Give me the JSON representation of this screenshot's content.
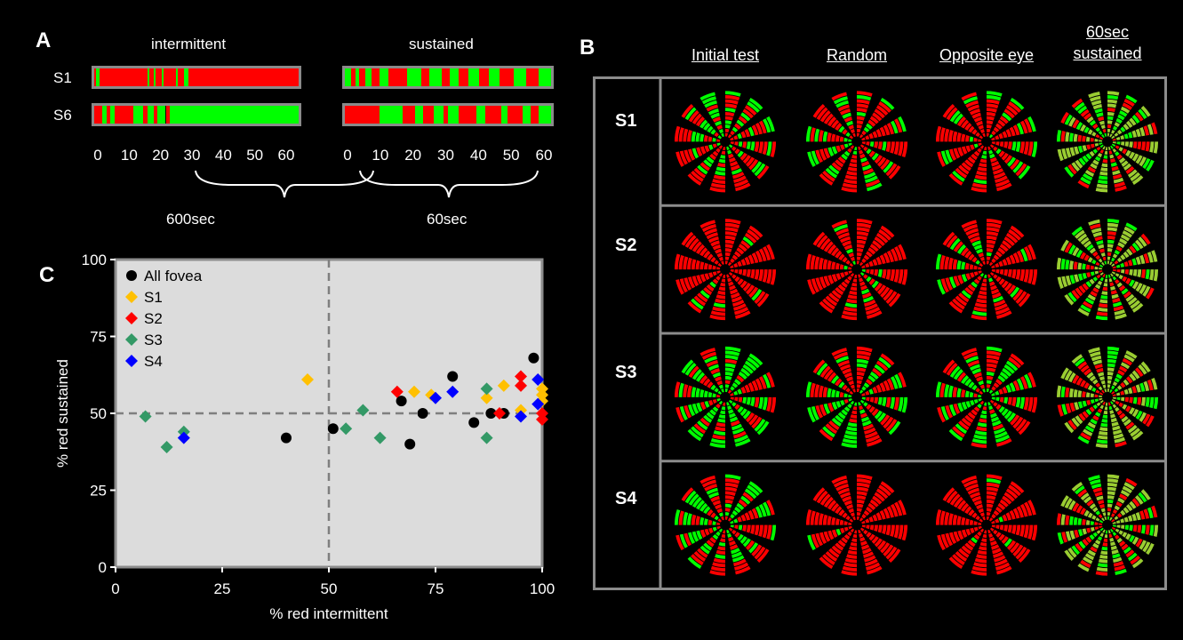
{
  "panel_a": {
    "letter": "A",
    "intermittent_label": "intermittent",
    "sustained_label": "sustained",
    "rows": [
      "S1",
      "S6"
    ],
    "ticks": [
      "0",
      "10",
      "20",
      "30",
      "40",
      "50",
      "60"
    ],
    "duration_intermittent": "600sec",
    "duration_sustained": "60sec",
    "colors": {
      "red": "#ff0000",
      "green": "#00ff00"
    },
    "bars": {
      "S1_intermittent": [
        [
          0,
          0.01,
          "r"
        ],
        [
          0.01,
          0.025,
          "g"
        ],
        [
          0.025,
          0.26,
          "r"
        ],
        [
          0.26,
          0.27,
          "g"
        ],
        [
          0.27,
          0.29,
          "r"
        ],
        [
          0.29,
          0.3,
          "g"
        ],
        [
          0.3,
          0.33,
          "r"
        ],
        [
          0.33,
          0.34,
          "g"
        ],
        [
          0.34,
          0.4,
          "r"
        ],
        [
          0.4,
          0.41,
          "g"
        ],
        [
          0.41,
          0.44,
          "r"
        ],
        [
          0.44,
          0.46,
          "g"
        ],
        [
          0.46,
          1,
          "r"
        ]
      ],
      "S6_intermittent": [
        [
          0,
          0.04,
          "r"
        ],
        [
          0.04,
          0.06,
          "g"
        ],
        [
          0.06,
          0.08,
          "r"
        ],
        [
          0.08,
          0.1,
          "g"
        ],
        [
          0.1,
          0.19,
          "r"
        ],
        [
          0.19,
          0.24,
          "g"
        ],
        [
          0.24,
          0.26,
          "r"
        ],
        [
          0.26,
          0.29,
          "g"
        ],
        [
          0.29,
          0.31,
          "r"
        ],
        [
          0.31,
          0.35,
          "g"
        ],
        [
          0.35,
          0.37,
          "r"
        ],
        [
          0.37,
          1,
          "g"
        ]
      ],
      "S1_sustained": [
        [
          0,
          0.03,
          "g"
        ],
        [
          0.03,
          0.05,
          "r"
        ],
        [
          0.05,
          0.07,
          "g"
        ],
        [
          0.07,
          0.1,
          "r"
        ],
        [
          0.1,
          0.13,
          "g"
        ],
        [
          0.13,
          0.17,
          "r"
        ],
        [
          0.17,
          0.21,
          "g"
        ],
        [
          0.21,
          0.3,
          "r"
        ],
        [
          0.3,
          0.37,
          "g"
        ],
        [
          0.37,
          0.41,
          "r"
        ],
        [
          0.41,
          0.47,
          "g"
        ],
        [
          0.47,
          0.51,
          "r"
        ],
        [
          0.51,
          0.55,
          "g"
        ],
        [
          0.55,
          0.6,
          "r"
        ],
        [
          0.6,
          0.65,
          "g"
        ],
        [
          0.65,
          0.7,
          "r"
        ],
        [
          0.7,
          0.75,
          "g"
        ],
        [
          0.75,
          0.82,
          "r"
        ],
        [
          0.82,
          0.88,
          "g"
        ],
        [
          0.88,
          0.94,
          "r"
        ],
        [
          0.94,
          1,
          "g"
        ]
      ],
      "S6_sustained": [
        [
          0,
          0.17,
          "r"
        ],
        [
          0.17,
          0.28,
          "g"
        ],
        [
          0.28,
          0.34,
          "r"
        ],
        [
          0.34,
          0.38,
          "g"
        ],
        [
          0.38,
          0.43,
          "r"
        ],
        [
          0.43,
          0.48,
          "g"
        ],
        [
          0.48,
          0.5,
          "r"
        ],
        [
          0.5,
          0.55,
          "g"
        ],
        [
          0.55,
          0.64,
          "r"
        ],
        [
          0.64,
          0.68,
          "g"
        ],
        [
          0.68,
          0.76,
          "r"
        ],
        [
          0.76,
          0.79,
          "g"
        ],
        [
          0.79,
          0.86,
          "r"
        ],
        [
          0.86,
          0.9,
          "g"
        ],
        [
          0.9,
          0.94,
          "r"
        ],
        [
          0.94,
          1,
          "g"
        ]
      ]
    }
  },
  "panel_b": {
    "letter": "B",
    "columns": [
      "Initial test",
      "Random",
      "Opposite eye",
      "60sec\nsustained"
    ],
    "rows": [
      "S1",
      "S2",
      "S3",
      "S4"
    ],
    "green_fraction": [
      [
        0.35,
        0.3,
        0.2,
        0.5
      ],
      [
        0.05,
        0.05,
        0.2,
        0.45
      ],
      [
        0.6,
        0.5,
        0.55,
        0.45
      ],
      [
        0.4,
        0.05,
        0.05,
        0.45
      ]
    ]
  },
  "panel_c": {
    "letter": "C"
  },
  "chart_data": {
    "type": "scatter",
    "xlabel": "% red intermittent",
    "ylabel": "% red sustained",
    "xlim": [
      0,
      100
    ],
    "ylim": [
      0,
      100
    ],
    "xticks": [
      "0",
      "25",
      "50",
      "75",
      "100"
    ],
    "yticks": [
      "0",
      "25",
      "50",
      "75",
      "100"
    ],
    "reference_lines": {
      "x": 50,
      "y": 50
    },
    "background": "#dcdcdc",
    "legend_position": "top-left",
    "series": [
      {
        "name": "All fovea",
        "marker": "circle",
        "color": "#000000",
        "points": [
          [
            40,
            42
          ],
          [
            51,
            45
          ],
          [
            67,
            54
          ],
          [
            69,
            40
          ],
          [
            72,
            50
          ],
          [
            79,
            62
          ],
          [
            84,
            47
          ],
          [
            88,
            50
          ],
          [
            91,
            50
          ],
          [
            98,
            68
          ]
        ]
      },
      {
        "name": "S1",
        "marker": "diamond",
        "color": "#ffc000",
        "points": [
          [
            45,
            61
          ],
          [
            70,
            57
          ],
          [
            74,
            56
          ],
          [
            87,
            55
          ],
          [
            91,
            59
          ],
          [
            95,
            51
          ],
          [
            100,
            58
          ],
          [
            100,
            56
          ],
          [
            100,
            54
          ]
        ]
      },
      {
        "name": "S2",
        "marker": "diamond",
        "color": "#ff0000",
        "points": [
          [
            66,
            57
          ],
          [
            90,
            50
          ],
          [
            95,
            62
          ],
          [
            95,
            59
          ],
          [
            100,
            50
          ],
          [
            100,
            48
          ]
        ]
      },
      {
        "name": "S3",
        "marker": "diamond",
        "color": "#339966",
        "points": [
          [
            7,
            49
          ],
          [
            12,
            39
          ],
          [
            16,
            44
          ],
          [
            54,
            45
          ],
          [
            58,
            51
          ],
          [
            62,
            42
          ],
          [
            87,
            58
          ],
          [
            87,
            42
          ]
        ]
      },
      {
        "name": "S4",
        "marker": "diamond",
        "color": "#0000ff",
        "points": [
          [
            16,
            42
          ],
          [
            75,
            55
          ],
          [
            79,
            57
          ],
          [
            95,
            49
          ],
          [
            99,
            61
          ],
          [
            99,
            53
          ]
        ]
      }
    ]
  }
}
